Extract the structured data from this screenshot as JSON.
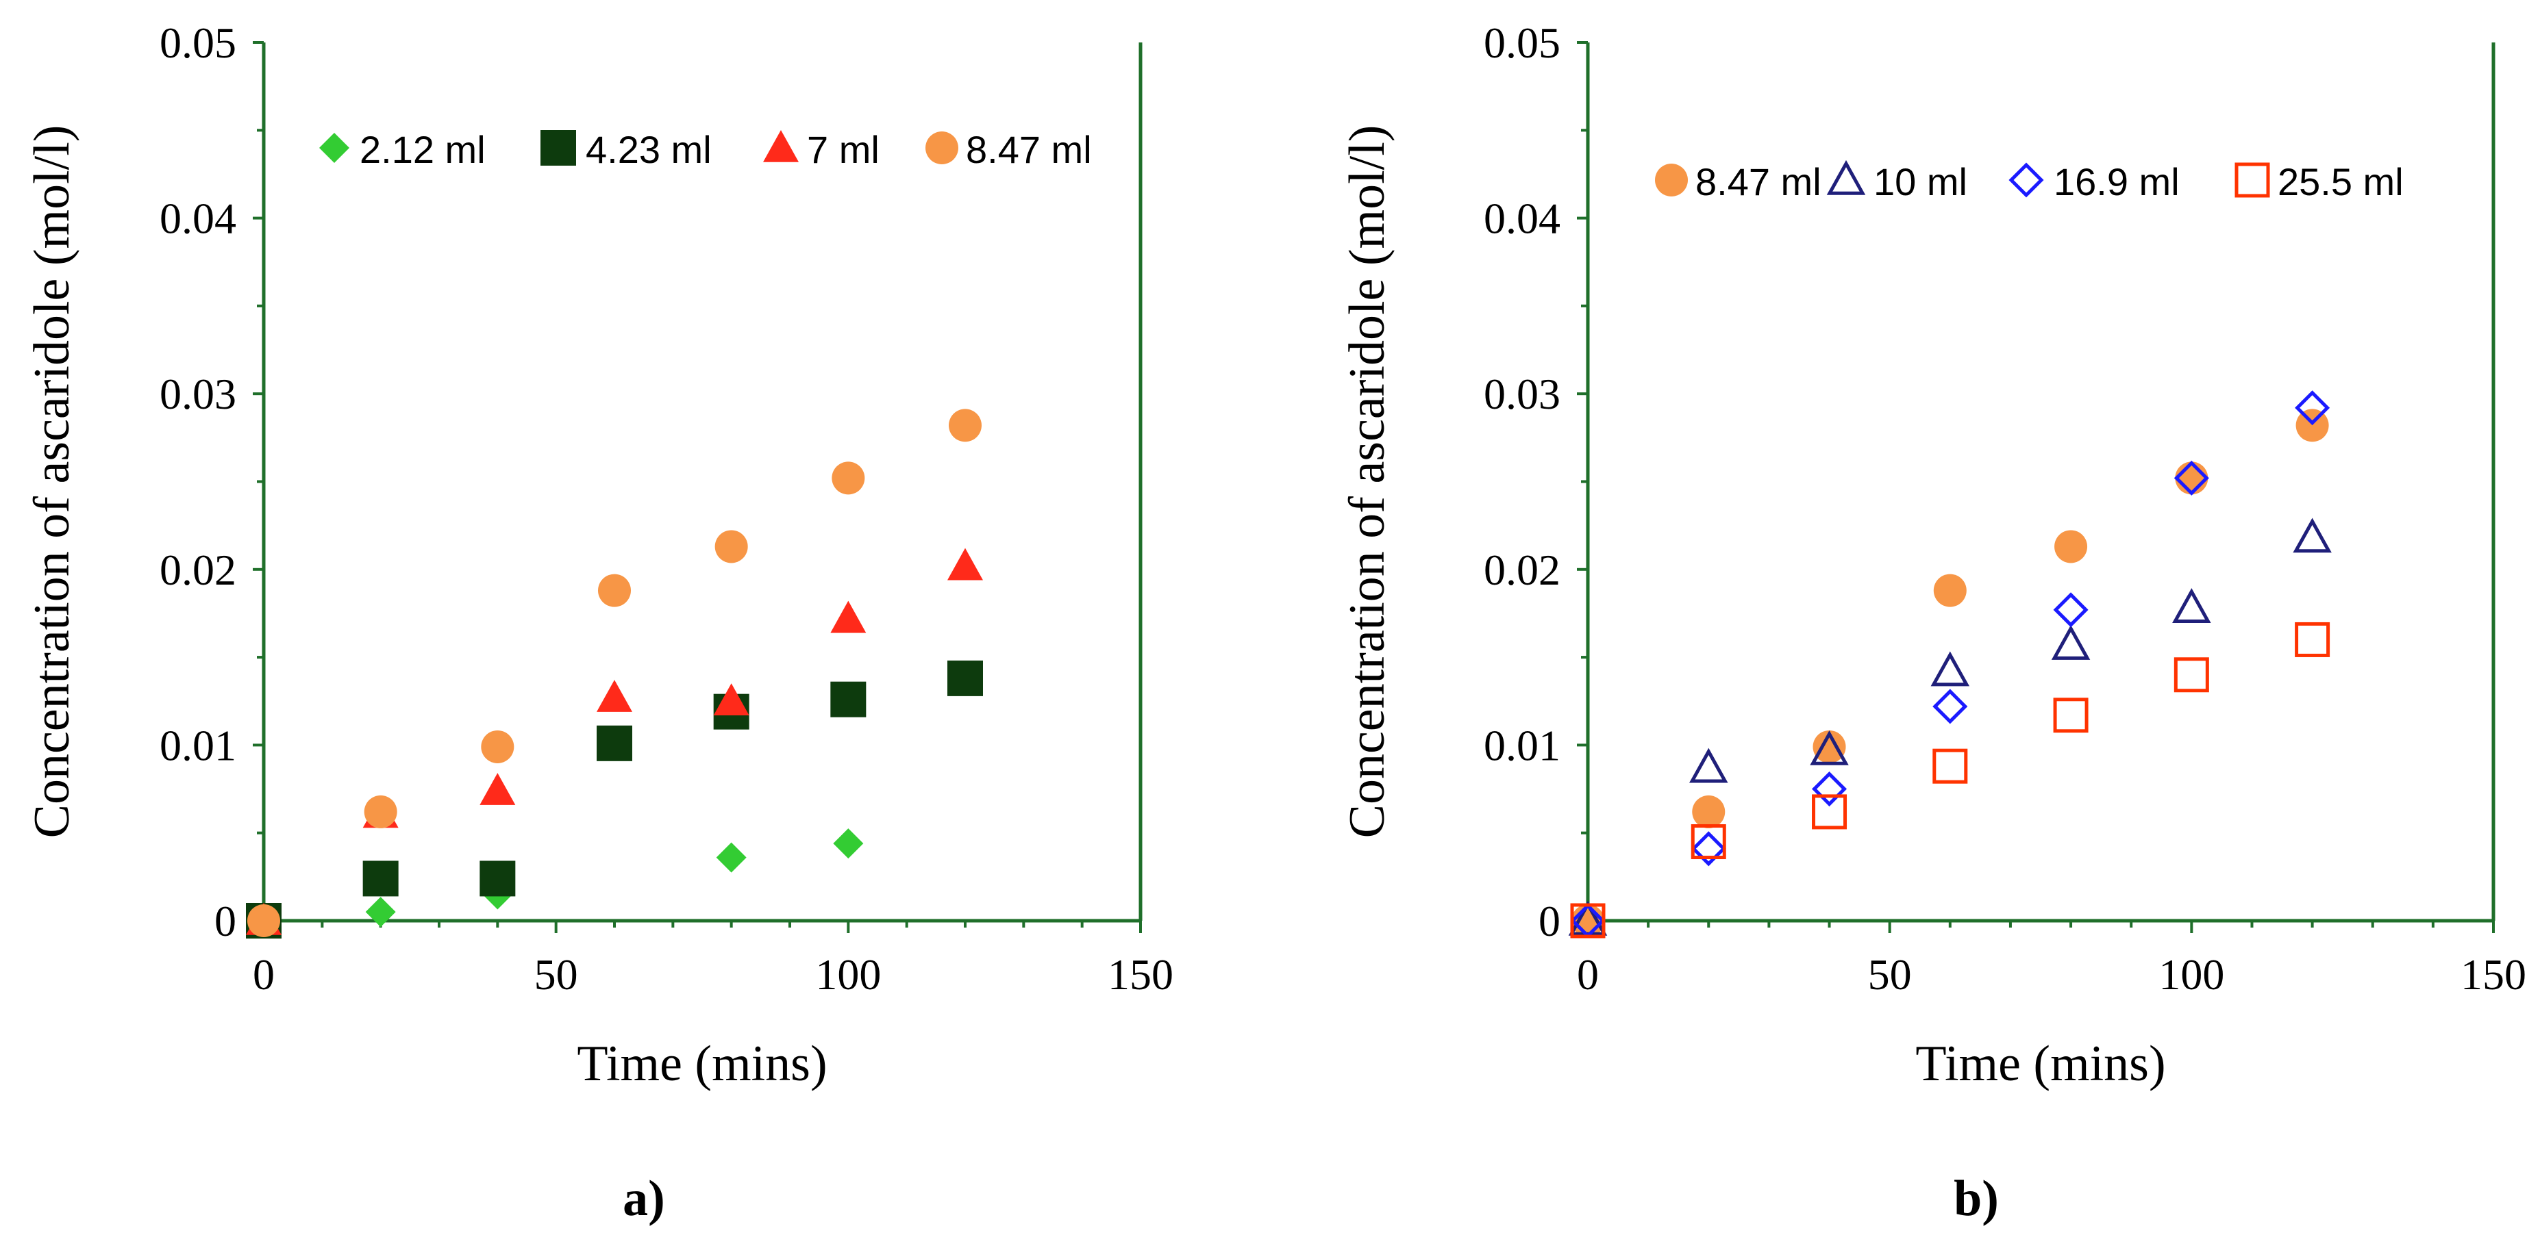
{
  "chart_data": [
    {
      "type": "scatter",
      "panel_label": "a)",
      "xlabel": "Time (mins)",
      "ylabel": "Concentration of ascaridole (mol/l)",
      "xlim": [
        0,
        150
      ],
      "ylim": [
        0,
        0.05
      ],
      "xticks": [
        0,
        50,
        100,
        150
      ],
      "xtick_labels": [
        "0",
        "50",
        "100",
        "150"
      ],
      "yticks": [
        0,
        0.01,
        0.02,
        0.03,
        0.04,
        0.05
      ],
      "ytick_labels": [
        "0",
        "0.01",
        "0.02",
        "0.03",
        "0.04",
        "0.05"
      ],
      "grid": false,
      "legend_position": "top",
      "axis_color": "#1f6f2a",
      "series": [
        {
          "name": "2.12 ml",
          "marker": "diamond-filled",
          "color": "#33cc33",
          "x": [
            0,
            20,
            40,
            80,
            100
          ],
          "y": [
            0,
            0.0005,
            0.0015,
            0.0036,
            0.0044
          ]
        },
        {
          "name": "4.23 ml",
          "marker": "square-filled",
          "color": "#0d3b0d",
          "x": [
            0,
            20,
            40,
            60,
            80,
            100,
            120
          ],
          "y": [
            0,
            0.0024,
            0.0024,
            0.0101,
            0.0119,
            0.0126,
            0.0138
          ]
        },
        {
          "name": "7 ml",
          "marker": "triangle-filled",
          "color": "#ff2a1a",
          "x": [
            0,
            20,
            40,
            60,
            80,
            100,
            120
          ],
          "y": [
            0,
            0.0061,
            0.0074,
            0.0127,
            0.0125,
            0.0172,
            0.0202
          ]
        },
        {
          "name": "8.47 ml",
          "marker": "circle-filled",
          "color": "#f79646",
          "x": [
            0,
            20,
            40,
            60,
            80,
            100,
            120
          ],
          "y": [
            0,
            0.0062,
            0.0099,
            0.0188,
            0.0213,
            0.0252,
            0.0282
          ]
        }
      ]
    },
    {
      "type": "scatter",
      "panel_label": "b)",
      "xlabel": "Time (mins)",
      "ylabel": "Concentration of ascaridole (mol/l)",
      "xlim": [
        0,
        150
      ],
      "ylim": [
        0,
        0.05
      ],
      "xticks": [
        0,
        50,
        100,
        150
      ],
      "xtick_labels": [
        "0",
        "50",
        "100",
        "150"
      ],
      "yticks": [
        0,
        0.01,
        0.02,
        0.03,
        0.04,
        0.05
      ],
      "ytick_labels": [
        "0",
        "0.01",
        "0.02",
        "0.03",
        "0.04",
        "0.05"
      ],
      "grid": false,
      "legend_position": "top",
      "axis_color": "#1f6f2a",
      "series": [
        {
          "name": "8.47 ml",
          "marker": "circle-filled",
          "color": "#f79646",
          "x": [
            0,
            20,
            40,
            60,
            80,
            100,
            120
          ],
          "y": [
            0,
            0.0062,
            0.0099,
            0.0188,
            0.0213,
            0.0252,
            0.0282
          ]
        },
        {
          "name": "10 ml",
          "marker": "triangle-open",
          "color": "#1f1f7a",
          "x": [
            0,
            20,
            40,
            60,
            80,
            100,
            120
          ],
          "y": [
            0,
            0.0087,
            0.0097,
            0.0142,
            0.0157,
            0.0178,
            0.0218
          ]
        },
        {
          "name": "16.9 ml",
          "marker": "diamond-open",
          "color": "#1a1aff",
          "x": [
            0,
            20,
            40,
            60,
            80,
            100,
            120
          ],
          "y": [
            0,
            0.0041,
            0.0075,
            0.0122,
            0.0177,
            0.0252,
            0.0292
          ]
        },
        {
          "name": "25.5 ml",
          "marker": "square-open",
          "color": "#ff3300",
          "x": [
            0,
            20,
            40,
            60,
            80,
            100,
            120
          ],
          "y": [
            0,
            0.0045,
            0.0062,
            0.0088,
            0.0117,
            0.014,
            0.016
          ]
        }
      ]
    }
  ]
}
